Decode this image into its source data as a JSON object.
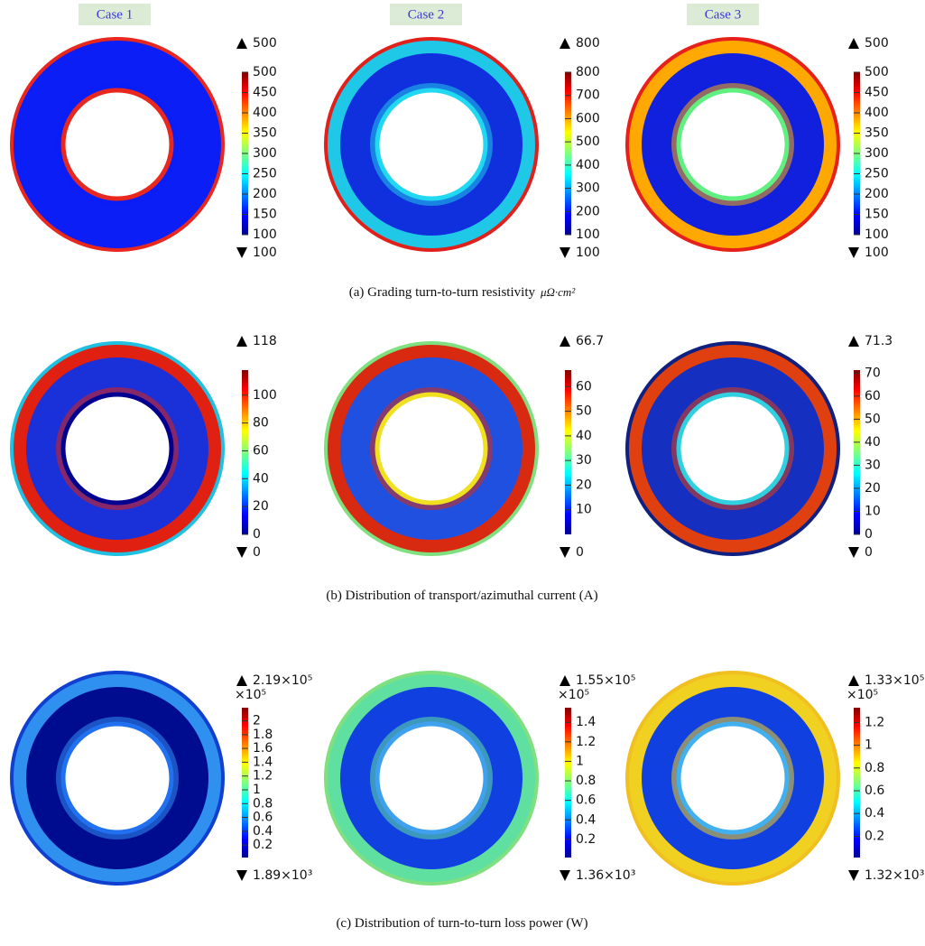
{
  "case_labels": [
    "Case 1",
    "Case 2",
    "Case 3"
  ],
  "rows": [
    {
      "caption": "(a) Grading turn-to-turn resistivity",
      "unit": "μΩ·cm²",
      "panels": [
        {
          "max": 500,
          "min": 100,
          "ticks": [
            100,
            150,
            200,
            250,
            300,
            350,
            400,
            450,
            500
          ],
          "colors": {
            "fill": "#0a1ef5",
            "band": "#0a1ef5",
            "outer": "#e8281e",
            "inner": "#e8281e"
          }
        },
        {
          "max": 800,
          "min": 100,
          "ticks": [
            100,
            200,
            300,
            400,
            500,
            600,
            700,
            800
          ],
          "colors": {
            "fill": "#1030dd",
            "band": "#20c8e8",
            "outer": "#e0201a",
            "inner": "#20d8f0"
          }
        },
        {
          "max": 500,
          "min": 100,
          "ticks": [
            100,
            150,
            200,
            250,
            300,
            350,
            400,
            450,
            500
          ],
          "colors": {
            "fill": "#1020dd",
            "band": "#ffa800",
            "outer": "#e8201a",
            "inner": "#60f080"
          }
        }
      ]
    },
    {
      "caption": "(b) Distribution of transport/azimuthal current (A)",
      "panels": [
        {
          "max": 118,
          "min": 0,
          "ticks": [
            0,
            20,
            40,
            60,
            80,
            100
          ],
          "colors": {
            "fill": "#1a30d8",
            "band": "#e02010",
            "outer": "#20c0e0",
            "inner": "#000090"
          }
        },
        {
          "max": 66.7,
          "min": 0,
          "ticks": [
            10,
            20,
            30,
            40,
            50,
            60
          ],
          "colors": {
            "fill": "#2050e0",
            "band": "#d82a10",
            "outer": "#80e080",
            "inner": "#f0e020"
          }
        },
        {
          "max": 71.3,
          "min": 0,
          "ticks": [
            0,
            10,
            20,
            30,
            40,
            50,
            60,
            70
          ],
          "colors": {
            "fill": "#1530c0",
            "band": "#e04010",
            "outer": "#102080",
            "inner": "#30d0e0"
          }
        }
      ]
    },
    {
      "caption": "(c) Distribution of turn-to-turn loss power (W)",
      "panels": [
        {
          "max": {
            "value": 2.19,
            "label": "2.19×10⁵"
          },
          "min": {
            "value": 0.0189,
            "label": "1.89×10³"
          },
          "multiplier": "×10⁵",
          "ticks": [
            0.2,
            0.4,
            0.6,
            0.8,
            1,
            1.2,
            1.4,
            1.6,
            1.8,
            2
          ],
          "colors": {
            "fill": "#000c90",
            "band": "#3090f0",
            "outer": "#1040d0",
            "inner": "#2070f0"
          }
        },
        {
          "max": {
            "value": 1.55,
            "label": "1.55×10⁵"
          },
          "min": {
            "value": 0.0136,
            "label": "1.36×10³"
          },
          "multiplier": "×10⁵",
          "ticks": [
            0.2,
            0.4,
            0.6,
            0.8,
            1,
            1.2,
            1.4
          ],
          "colors": {
            "fill": "#1040e0",
            "band": "#60e0a0",
            "outer": "#80e080",
            "inner": "#40a0f0"
          }
        },
        {
          "max": {
            "value": 1.33,
            "label": "1.33×10⁵"
          },
          "min": {
            "value": 0.0132,
            "label": "1.32×10³"
          },
          "multiplier": "×10⁵",
          "ticks": [
            0.2,
            0.4,
            0.6,
            0.8,
            1,
            1.2
          ],
          "colors": {
            "fill": "#1040e0",
            "band": "#f0d020",
            "outer": "#f0c020",
            "inner": "#40b0f0"
          }
        }
      ]
    }
  ]
}
